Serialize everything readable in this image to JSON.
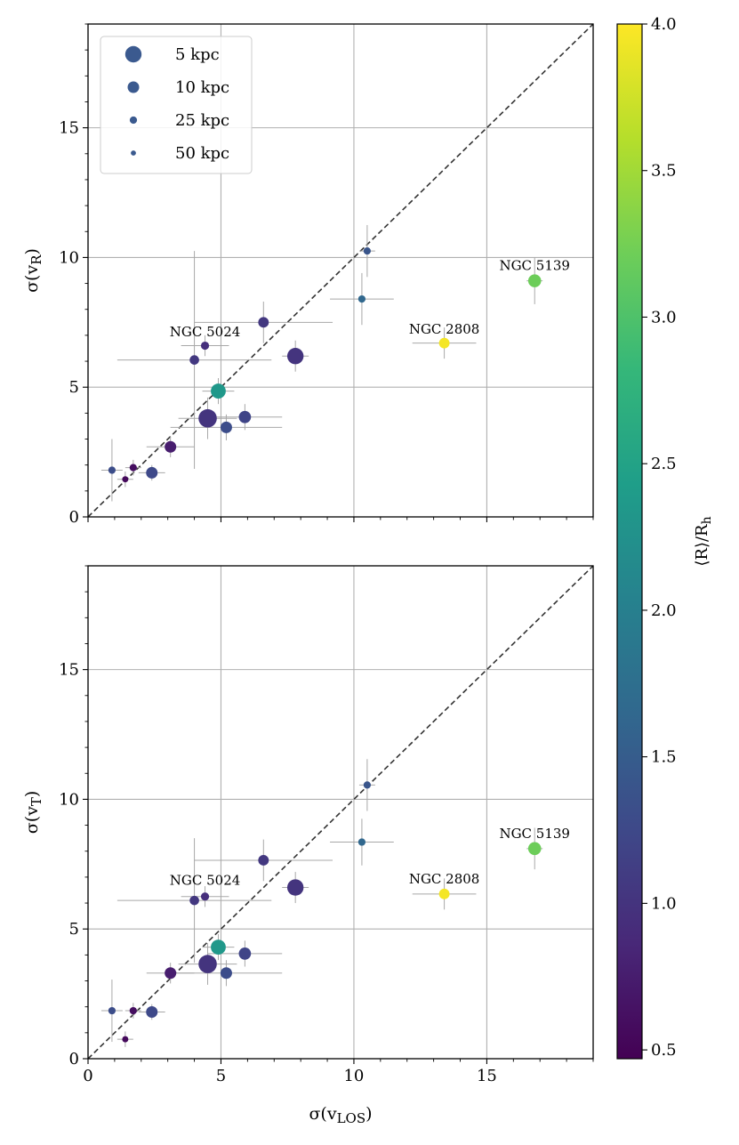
{
  "chart_data": [
    {
      "type": "scatter",
      "panel": "top",
      "xlabel": "σ(v_LOS)",
      "ylabel": "σ(v_R)",
      "ylabel_main": "σ(v",
      "ylabel_sub": "R",
      "xlim": [
        0,
        19
      ],
      "ylim": [
        0,
        19
      ],
      "xticks": [
        "0",
        "5",
        "10",
        "15"
      ],
      "yticks": [
        "0",
        "5",
        "10",
        "15"
      ],
      "grid": true,
      "identity_line": true,
      "legend": {
        "placement": "top-left",
        "entries": [
          {
            "label": "5 kpc",
            "distance": 5
          },
          {
            "label": "10 kpc",
            "distance": 10
          },
          {
            "label": "25 kpc",
            "distance": 25
          },
          {
            "label": "50 kpc",
            "distance": 50
          }
        ]
      },
      "annotations": [
        {
          "text": "NGC 5024",
          "x": 4.4,
          "y": 6.55
        },
        {
          "text": "NGC 2808",
          "x": 13.4,
          "y": 6.65
        },
        {
          "text": "NGC 5139",
          "x": 16.8,
          "y": 9.1
        }
      ],
      "points": [
        {
          "x": 0.9,
          "y": 1.8,
          "xerr": 0.4,
          "yerr": 1.2,
          "dist": 25,
          "r_rh": 1.3
        },
        {
          "x": 1.4,
          "y": 1.45,
          "xerr": 0.3,
          "yerr": 0.3,
          "dist": 35,
          "r_rh": 0.55
        },
        {
          "x": 1.7,
          "y": 1.9,
          "xerr": 0.3,
          "yerr": 0.3,
          "dist": 25,
          "r_rh": 0.6
        },
        {
          "x": 2.4,
          "y": 1.7,
          "xerr": 0.5,
          "yerr": 0.3,
          "dist": 10,
          "r_rh": 1.25
        },
        {
          "x": 3.1,
          "y": 2.7,
          "xerr": 0.9,
          "yerr": 0.4,
          "dist": 10,
          "r_rh": 0.75
        },
        {
          "x": 4.0,
          "y": 6.05,
          "xerr": 2.9,
          "yerr": 4.2,
          "dist": 15,
          "r_rh": 1.05
        },
        {
          "x": 4.4,
          "y": 6.6,
          "xerr": 0.9,
          "yerr": 0.4,
          "dist": 20,
          "r_rh": 0.95
        },
        {
          "x": 4.5,
          "y": 3.8,
          "xerr": 1.1,
          "yerr": 0.8,
          "dist": 4,
          "r_rh": 1.0
        },
        {
          "x": 4.9,
          "y": 4.85,
          "xerr": 0.6,
          "yerr": 0.5,
          "dist": 6,
          "r_rh": 2.35
        },
        {
          "x": 5.2,
          "y": 3.45,
          "xerr": 2.1,
          "yerr": 0.5,
          "dist": 10,
          "r_rh": 1.3
        },
        {
          "x": 5.9,
          "y": 3.85,
          "xerr": 1.4,
          "yerr": 0.5,
          "dist": 9,
          "r_rh": 1.2
        },
        {
          "x": 6.6,
          "y": 7.5,
          "xerr": 2.6,
          "yerr": 0.8,
          "dist": 12,
          "r_rh": 1.05
        },
        {
          "x": 7.8,
          "y": 6.2,
          "xerr": 0.5,
          "yerr": 0.6,
          "dist": 5,
          "r_rh": 1.0
        },
        {
          "x": 10.3,
          "y": 8.4,
          "xerr": 1.2,
          "yerr": 1.0,
          "dist": 25,
          "r_rh": 1.65
        },
        {
          "x": 10.5,
          "y": 10.25,
          "xerr": 0.3,
          "yerr": 1.0,
          "dist": 25,
          "r_rh": 1.4
        },
        {
          "x": 13.4,
          "y": 6.7,
          "xerr": 1.2,
          "yerr": 0.6,
          "dist": 12,
          "r_rh": 3.95
        },
        {
          "x": 16.8,
          "y": 9.1,
          "xerr": 0.3,
          "yerr": 0.9,
          "dist": 8,
          "r_rh": 3.2
        }
      ]
    },
    {
      "type": "scatter",
      "panel": "bottom",
      "xlabel": "σ(v_LOS)",
      "ylabel": "σ(v_T)",
      "xlabel_main": "σ(v",
      "xlabel_sub": "LOS",
      "ylabel_main": "σ(v",
      "ylabel_sub": "T",
      "xlim": [
        0,
        19
      ],
      "ylim": [
        0,
        19
      ],
      "xticks": [
        "0",
        "5",
        "10",
        "15"
      ],
      "yticks": [
        "0",
        "5",
        "10",
        "15"
      ],
      "grid": true,
      "identity_line": true,
      "annotations": [
        {
          "text": "NGC 5024",
          "x": 4.4,
          "y": 6.3
        },
        {
          "text": "NGC 2808",
          "x": 13.4,
          "y": 6.35
        },
        {
          "text": "NGC 5139",
          "x": 16.8,
          "y": 8.1
        }
      ],
      "points": [
        {
          "x": 0.9,
          "y": 1.85,
          "xerr": 0.4,
          "yerr": 1.2,
          "dist": 25,
          "r_rh": 1.3
        },
        {
          "x": 1.4,
          "y": 0.75,
          "xerr": 0.3,
          "yerr": 0.3,
          "dist": 35,
          "r_rh": 0.55
        },
        {
          "x": 1.7,
          "y": 1.85,
          "xerr": 0.3,
          "yerr": 0.3,
          "dist": 25,
          "r_rh": 0.6
        },
        {
          "x": 2.4,
          "y": 1.8,
          "xerr": 0.5,
          "yerr": 0.3,
          "dist": 10,
          "r_rh": 1.25
        },
        {
          "x": 3.1,
          "y": 3.3,
          "xerr": 0.9,
          "yerr": 0.4,
          "dist": 10,
          "r_rh": 0.75
        },
        {
          "x": 4.0,
          "y": 6.1,
          "xerr": 2.9,
          "yerr": 2.4,
          "dist": 15,
          "r_rh": 1.05
        },
        {
          "x": 4.4,
          "y": 6.25,
          "xerr": 0.9,
          "yerr": 0.4,
          "dist": 20,
          "r_rh": 0.95
        },
        {
          "x": 4.5,
          "y": 3.65,
          "xerr": 1.1,
          "yerr": 0.8,
          "dist": 4,
          "r_rh": 1.0
        },
        {
          "x": 4.9,
          "y": 4.3,
          "xerr": 0.6,
          "yerr": 0.5,
          "dist": 6,
          "r_rh": 2.35
        },
        {
          "x": 5.2,
          "y": 3.3,
          "xerr": 2.1,
          "yerr": 0.5,
          "dist": 10,
          "r_rh": 1.3
        },
        {
          "x": 5.9,
          "y": 4.05,
          "xerr": 1.4,
          "yerr": 0.5,
          "dist": 9,
          "r_rh": 1.2
        },
        {
          "x": 6.6,
          "y": 7.65,
          "xerr": 2.6,
          "yerr": 0.8,
          "dist": 12,
          "r_rh": 1.05
        },
        {
          "x": 7.8,
          "y": 6.6,
          "xerr": 0.5,
          "yerr": 0.6,
          "dist": 5,
          "r_rh": 1.0
        },
        {
          "x": 10.3,
          "y": 8.35,
          "xerr": 1.2,
          "yerr": 0.9,
          "dist": 25,
          "r_rh": 1.65
        },
        {
          "x": 10.5,
          "y": 10.55,
          "xerr": 0.3,
          "yerr": 1.0,
          "dist": 25,
          "r_rh": 1.4
        },
        {
          "x": 13.4,
          "y": 6.35,
          "xerr": 1.2,
          "yerr": 0.6,
          "dist": 12,
          "r_rh": 3.95
        },
        {
          "x": 16.8,
          "y": 8.1,
          "xerr": 0.3,
          "yerr": 0.8,
          "dist": 8,
          "r_rh": 3.2
        }
      ]
    }
  ],
  "colorbar": {
    "label": "⟨R⟩/R_h",
    "label_text": "⟨R⟩/R",
    "label_sub": "h",
    "colormap": "viridis",
    "min": 0.47,
    "max": 4.0,
    "ticks": [
      0.5,
      1.0,
      1.5,
      2.0,
      2.5,
      3.0,
      3.5,
      4.0
    ],
    "tick_labels": [
      "0.5",
      "1.0",
      "1.5",
      "2.0",
      "2.5",
      "3.0",
      "3.5",
      "4.0"
    ]
  },
  "style": {
    "grid_color": "#b0b0b0",
    "errorbar_color": "#a8a8a8",
    "identity_color": "#333333",
    "legend_marker_color": "#3b5a8f",
    "viridis": [
      "#440154",
      "#482878",
      "#3e4989",
      "#31688e",
      "#26828e",
      "#1f9e89",
      "#35b779",
      "#6ece58",
      "#b5de2b",
      "#fde725"
    ]
  }
}
